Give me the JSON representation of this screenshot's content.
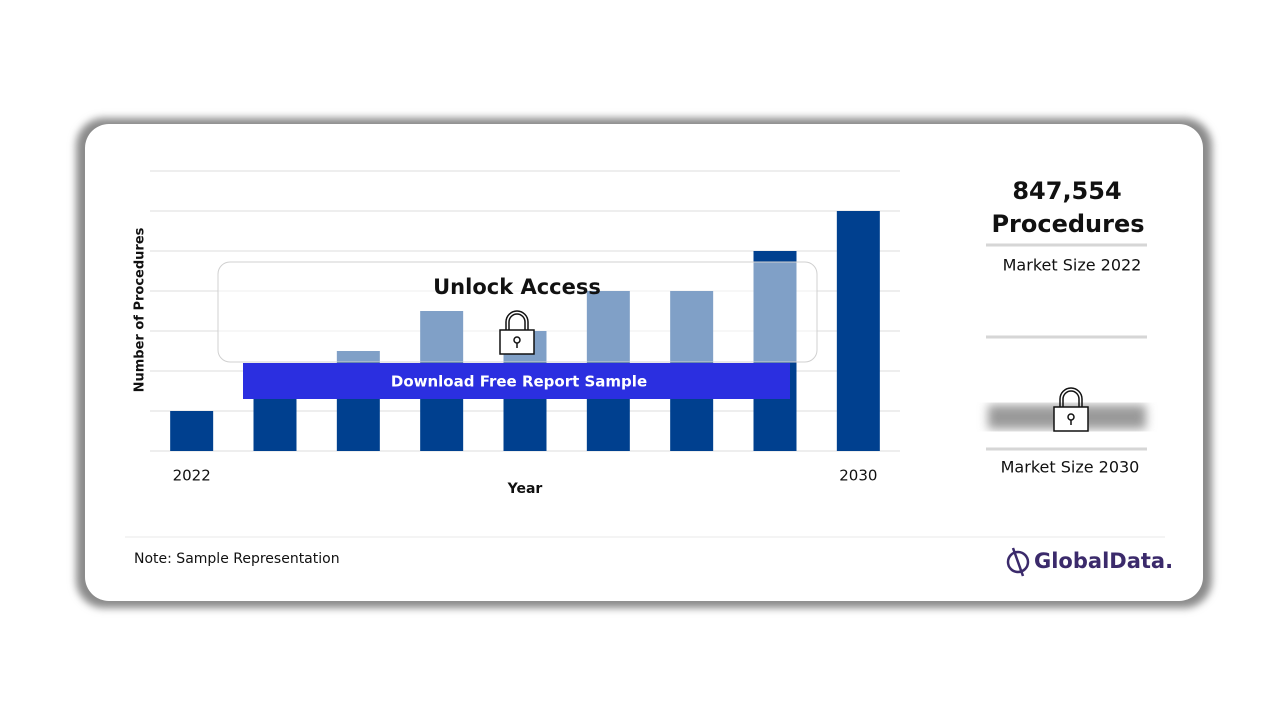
{
  "chart_data": {
    "type": "bar",
    "y_label": "Number of Procedures",
    "x_label": "Year",
    "categories": [
      "2022",
      null,
      null,
      null,
      null,
      null,
      null,
      null,
      "2030"
    ],
    "values": [
      1,
      2,
      2.5,
      3.5,
      3,
      4,
      4,
      5,
      6
    ],
    "color": "#00408f",
    "ylim": [
      0,
      7
    ],
    "yticks": [
      0,
      1,
      2,
      3,
      4,
      5,
      6,
      7
    ],
    "grid": true
  },
  "overlay": {
    "title": "Unlock Access",
    "button": "Download Free Report Sample"
  },
  "summary": {
    "value": "847,554",
    "unit": "Procedures",
    "label_2022": "Market Size 2022",
    "label_2030": "Market Size 2030"
  },
  "note": "Note: Sample Representation",
  "logo": "GlobalData."
}
